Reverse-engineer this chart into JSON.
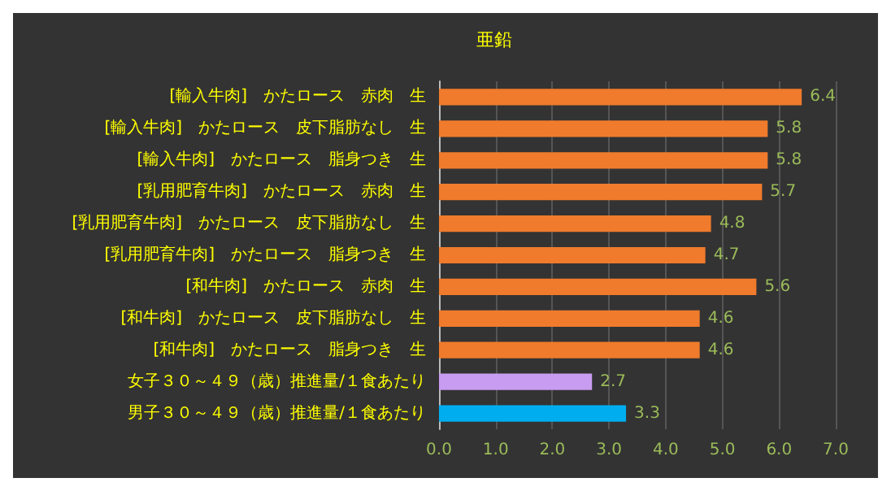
{
  "chart_data": {
    "type": "bar",
    "orientation": "horizontal",
    "title": "亜鉛",
    "categories": [
      "[輸入牛肉]　かたロース　赤肉　生",
      "[輸入牛肉]　かたロース　皮下脂肪なし　生",
      "[輸入牛肉]　かたロース　脂身つき　生",
      "[乳用肥育牛肉]　かたロース　赤肉　生",
      "[乳用肥育牛肉]　かたロース　皮下脂肪なし　生",
      "[乳用肥育牛肉]　かたロース　脂身つき　生",
      "[和牛肉]　かたロース　赤肉　生",
      "[和牛肉]　かたロース　皮下脂肪なし　生",
      "[和牛肉]　かたロース　脂身つき　生",
      "女子３０～４９（歳）推進量/１食あたり",
      "男子３０～４９（歳）推進量/１食あたり"
    ],
    "values": [
      6.4,
      5.8,
      5.8,
      5.7,
      4.8,
      4.7,
      5.6,
      4.6,
      4.6,
      2.7,
      3.3
    ],
    "colors": [
      "#f07b2c",
      "#f07b2c",
      "#f07b2c",
      "#f07b2c",
      "#f07b2c",
      "#f07b2c",
      "#f07b2c",
      "#f07b2c",
      "#f07b2c",
      "#c89cf0",
      "#00aeef"
    ],
    "data_labels": true,
    "xlim": [
      0,
      7
    ],
    "xticks": [
      {
        "value": 0,
        "label": "0.0"
      },
      {
        "value": 1,
        "label": "1.0"
      },
      {
        "value": 2,
        "label": "2.0"
      },
      {
        "value": 3,
        "label": "3.0"
      },
      {
        "value": 4,
        "label": "4.0"
      },
      {
        "value": 5,
        "label": "5.0"
      },
      {
        "value": 6,
        "label": "6.0"
      },
      {
        "value": 7,
        "label": "7.0"
      }
    ],
    "grid": "x"
  }
}
